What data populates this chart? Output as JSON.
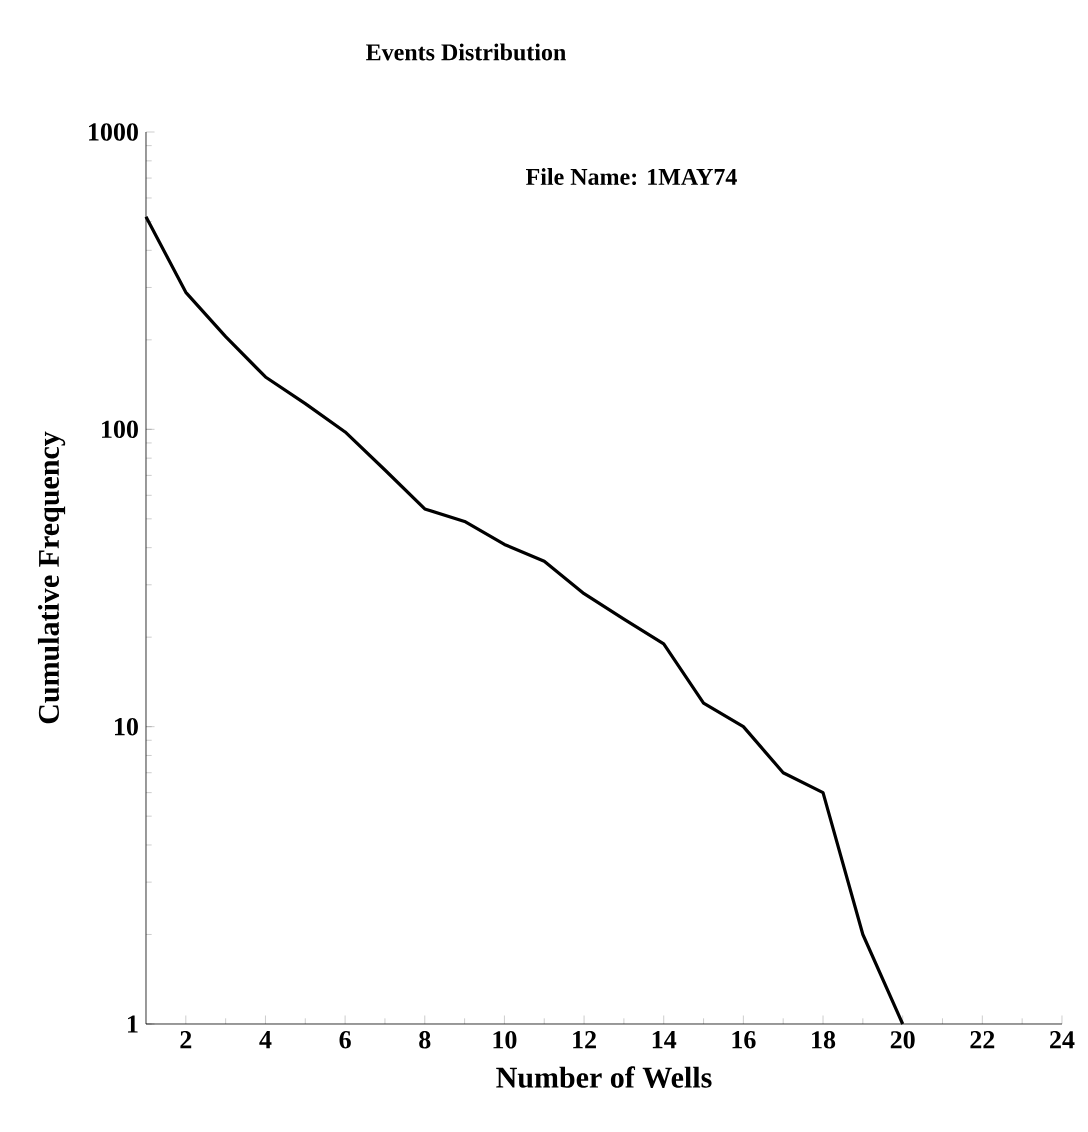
{
  "chart_data": {
    "type": "line",
    "title": "Events Distribution",
    "xlabel": "Number of Wells",
    "ylabel": "Cumulative Frequency",
    "annotations": [
      "File Name: 1MAY74"
    ],
    "x": [
      1,
      2,
      3,
      4,
      5,
      6,
      7,
      8,
      9,
      10,
      11,
      12,
      13,
      14,
      15,
      16,
      17,
      18,
      19,
      20
    ],
    "series": [
      {
        "color": "#000000",
        "values": [
          519,
          289,
          205,
          150,
          122,
          98,
          73,
          54,
          49,
          41,
          36,
          28,
          23,
          19,
          12,
          10,
          7,
          6,
          2,
          1
        ]
      }
    ],
    "xlim": [
      1,
      24
    ],
    "xticks": [
      2,
      4,
      6,
      8,
      10,
      12,
      14,
      16,
      18,
      20,
      22,
      24
    ],
    "ylim": [
      1,
      1000
    ],
    "yticks": [
      1,
      10,
      100,
      1000
    ],
    "log": "y",
    "grid": false,
    "marker": "none",
    "line_style": "solid"
  }
}
